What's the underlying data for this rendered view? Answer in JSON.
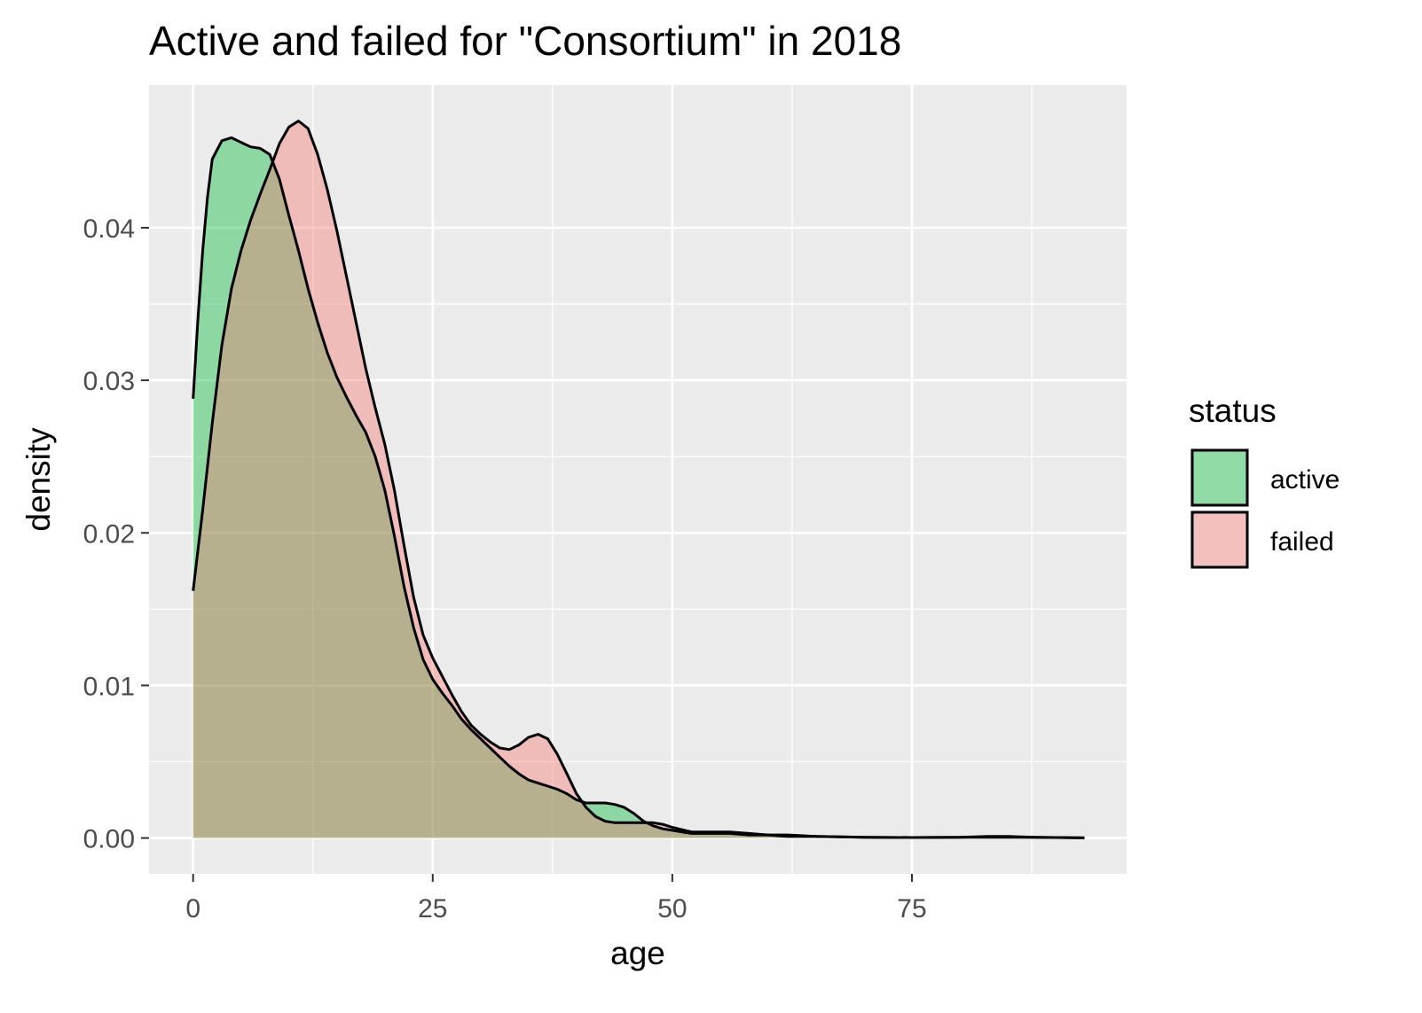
{
  "chart_data": {
    "type": "area",
    "title": "Active and failed for \"Consortium\" in 2018",
    "xlabel": "age",
    "ylabel": "density",
    "xlim": [
      -4.6,
      97.4
    ],
    "ylim": [
      -0.00235,
      0.04935
    ],
    "x_ticks": [
      0,
      25,
      50,
      75
    ],
    "x_tick_labels": [
      "0",
      "25",
      "50",
      "75"
    ],
    "y_ticks": [
      0.0,
      0.01,
      0.02,
      0.03,
      0.04
    ],
    "y_tick_labels": [
      "0.00",
      "0.01",
      "0.02",
      "0.03",
      "0.04"
    ],
    "grid": true,
    "legend": {
      "title": "status",
      "position": "right"
    },
    "series": [
      {
        "name": "active",
        "color": "#00BA38",
        "points": [
          [
            0,
            0.0288
          ],
          [
            0.5,
            0.034
          ],
          [
            1,
            0.0385
          ],
          [
            1.5,
            0.042
          ],
          [
            2,
            0.0445
          ],
          [
            3,
            0.0457
          ],
          [
            4,
            0.0459
          ],
          [
            5,
            0.0456
          ],
          [
            6,
            0.0453
          ],
          [
            7,
            0.0452
          ],
          [
            8,
            0.0448
          ],
          [
            9,
            0.0432
          ],
          [
            10,
            0.0408
          ],
          [
            11,
            0.0385
          ],
          [
            12,
            0.036
          ],
          [
            13,
            0.0338
          ],
          [
            14,
            0.0318
          ],
          [
            15,
            0.0302
          ],
          [
            16,
            0.0289
          ],
          [
            17,
            0.0277
          ],
          [
            18,
            0.0266
          ],
          [
            19,
            0.025
          ],
          [
            20,
            0.0228
          ],
          [
            21,
            0.0198
          ],
          [
            22,
            0.0165
          ],
          [
            23,
            0.0138
          ],
          [
            24,
            0.0117
          ],
          [
            25,
            0.0104
          ],
          [
            26,
            0.0095
          ],
          [
            27,
            0.0087
          ],
          [
            28,
            0.0078
          ],
          [
            29,
            0.0071
          ],
          [
            30,
            0.0065
          ],
          [
            31,
            0.0059
          ],
          [
            32,
            0.0053
          ],
          [
            33,
            0.0047
          ],
          [
            34,
            0.0042
          ],
          [
            35,
            0.0038
          ],
          [
            36,
            0.0036
          ],
          [
            37,
            0.0034
          ],
          [
            38,
            0.0032
          ],
          [
            39,
            0.0029
          ],
          [
            40,
            0.0025
          ],
          [
            41,
            0.0023
          ],
          [
            42,
            0.0023
          ],
          [
            43,
            0.0023
          ],
          [
            44,
            0.0022
          ],
          [
            45,
            0.002
          ],
          [
            46,
            0.0016
          ],
          [
            47,
            0.0011
          ],
          [
            48,
            0.0008
          ],
          [
            49,
            0.0006
          ],
          [
            50,
            0.0005
          ],
          [
            52,
            0.0003
          ],
          [
            54,
            0.0003
          ],
          [
            56,
            0.0003
          ],
          [
            58,
            0.0002
          ],
          [
            60,
            0.0002
          ],
          [
            62,
            0.0001
          ],
          [
            65,
            0.0001
          ],
          [
            70,
            5e-05
          ],
          [
            75,
            3e-05
          ],
          [
            80,
            5e-05
          ],
          [
            85,
            5e-05
          ],
          [
            90,
            3e-05
          ],
          [
            93,
            1e-05
          ]
        ]
      },
      {
        "name": "failed",
        "color": "#F8766D",
        "points": [
          [
            0,
            0.0162
          ],
          [
            1,
            0.0215
          ],
          [
            2,
            0.0272
          ],
          [
            3,
            0.0323
          ],
          [
            4,
            0.036
          ],
          [
            5,
            0.0385
          ],
          [
            6,
            0.0405
          ],
          [
            7,
            0.0422
          ],
          [
            8,
            0.0438
          ],
          [
            9,
            0.0455
          ],
          [
            10,
            0.0466
          ],
          [
            11,
            0.047
          ],
          [
            12,
            0.0465
          ],
          [
            13,
            0.0448
          ],
          [
            14,
            0.0425
          ],
          [
            15,
            0.0398
          ],
          [
            16,
            0.0368
          ],
          [
            17,
            0.0338
          ],
          [
            18,
            0.0308
          ],
          [
            19,
            0.0282
          ],
          [
            20,
            0.0258
          ],
          [
            21,
            0.0228
          ],
          [
            22,
            0.0192
          ],
          [
            23,
            0.0158
          ],
          [
            24,
            0.0133
          ],
          [
            25,
            0.0118
          ],
          [
            26,
            0.0106
          ],
          [
            27,
            0.0094
          ],
          [
            28,
            0.0083
          ],
          [
            29,
            0.0074
          ],
          [
            30,
            0.0068
          ],
          [
            31,
            0.0063
          ],
          [
            32,
            0.0059
          ],
          [
            33,
            0.0058
          ],
          [
            34,
            0.0061
          ],
          [
            35,
            0.0066
          ],
          [
            36,
            0.0068
          ],
          [
            37,
            0.0065
          ],
          [
            38,
            0.0055
          ],
          [
            39,
            0.0042
          ],
          [
            40,
            0.0029
          ],
          [
            41,
            0.002
          ],
          [
            42,
            0.0014
          ],
          [
            43,
            0.0011
          ],
          [
            44,
            0.001
          ],
          [
            45,
            0.001
          ],
          [
            46,
            0.001
          ],
          [
            47,
            0.001
          ],
          [
            48,
            0.001
          ],
          [
            49,
            0.0009
          ],
          [
            50,
            0.0007
          ],
          [
            52,
            0.0004
          ],
          [
            54,
            0.0004
          ],
          [
            56,
            0.0004
          ],
          [
            58,
            0.0003
          ],
          [
            60,
            0.0002
          ],
          [
            62,
            0.0002
          ],
          [
            65,
            0.0001
          ],
          [
            70,
            5e-05
          ],
          [
            75,
            3e-05
          ],
          [
            80,
            5e-05
          ],
          [
            83,
            0.0001
          ],
          [
            85,
            0.0001
          ],
          [
            88,
            5e-05
          ],
          [
            90,
            3e-05
          ],
          [
            93,
            1e-05
          ]
        ]
      }
    ]
  }
}
